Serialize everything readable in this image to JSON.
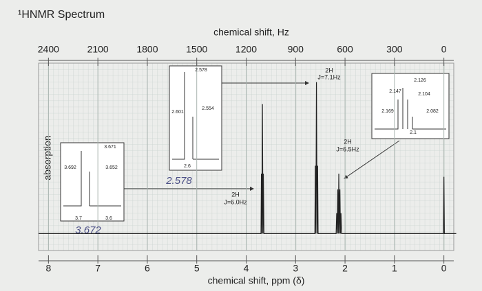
{
  "chart_data": {
    "type": "line",
    "title": "¹HNMR Spectrum",
    "x2_label": "chemical shift, Hz",
    "xlabel": "chemical shift, ppm (δ)",
    "ylabel": "absorption",
    "xlim": [
      8.2,
      -0.2
    ],
    "xticks": [
      8,
      7,
      6,
      5,
      4,
      3,
      2,
      1,
      0
    ],
    "x2lim": [
      2460,
      -60
    ],
    "x2ticks": [
      2400,
      2100,
      1800,
      1500,
      1200,
      900,
      600,
      300,
      0
    ],
    "ylim": [
      0,
      110
    ],
    "grid": true,
    "series": [
      {
        "color": "#222222",
        "x": [
          8.2,
          3.7,
          3.692,
          3.68,
          3.671,
          3.66,
          3.652,
          3.64,
          2.61,
          2.601,
          2.59,
          2.578,
          2.565,
          2.554,
          2.545,
          2.18,
          2.169,
          2.158,
          2.147,
          2.136,
          2.126,
          2.115,
          2.104,
          2.093,
          2.082,
          2.07,
          0.01,
          0,
          -0.01,
          -0.25
        ],
        "values": [
          2,
          2,
          40,
          2,
          84,
          2,
          40,
          2,
          2,
          45,
          2,
          98,
          2,
          45,
          2,
          2,
          15,
          2,
          30,
          2,
          40,
          2,
          30,
          2,
          15,
          2,
          2,
          38,
          2,
          2
        ]
      }
    ],
    "annotations": [
      "2H",
      "J=7.1Hz",
      "2H",
      "J=6.5Hz",
      "2H",
      "J=6.0Hz",
      "3.672",
      "2.578",
      "3.692",
      "3.671",
      "3.652",
      "3.7",
      "3.6",
      "2.578",
      "2.601",
      "2.554",
      "2.6",
      "2.126",
      "2.147",
      "2.104",
      "2.169",
      "2.082",
      "2.1"
    ]
  }
}
